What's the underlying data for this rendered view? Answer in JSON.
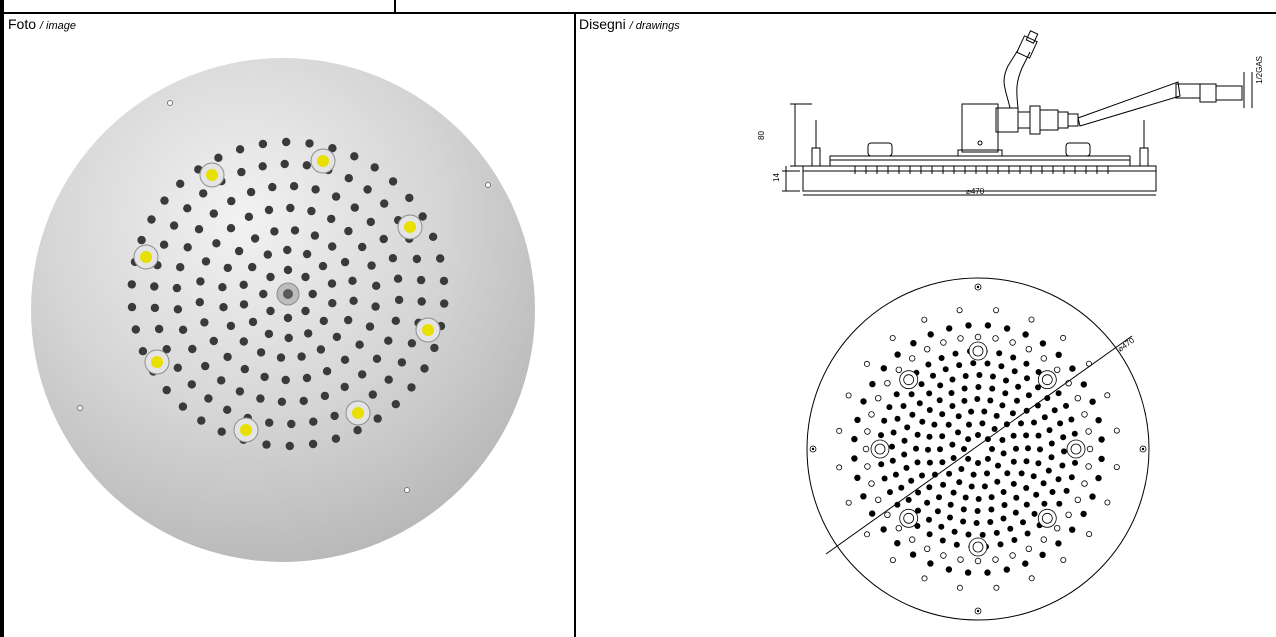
{
  "photo_cell": {
    "title": "Foto",
    "subtitle": "/ image"
  },
  "drawings_cell": {
    "title": "Disegni",
    "subtitle": "/ drawings"
  },
  "side_view": {
    "height_label": "80",
    "thickness_label": "14",
    "diameter_label": "⌀470",
    "connection_label": "1/2GAS"
  },
  "top_view": {
    "diameter_label": "⌀470"
  },
  "colors": {
    "led": "#e8e000",
    "nozzle": "#3a3a3a",
    "panel": "#c9c9c9",
    "line": "#000000"
  }
}
